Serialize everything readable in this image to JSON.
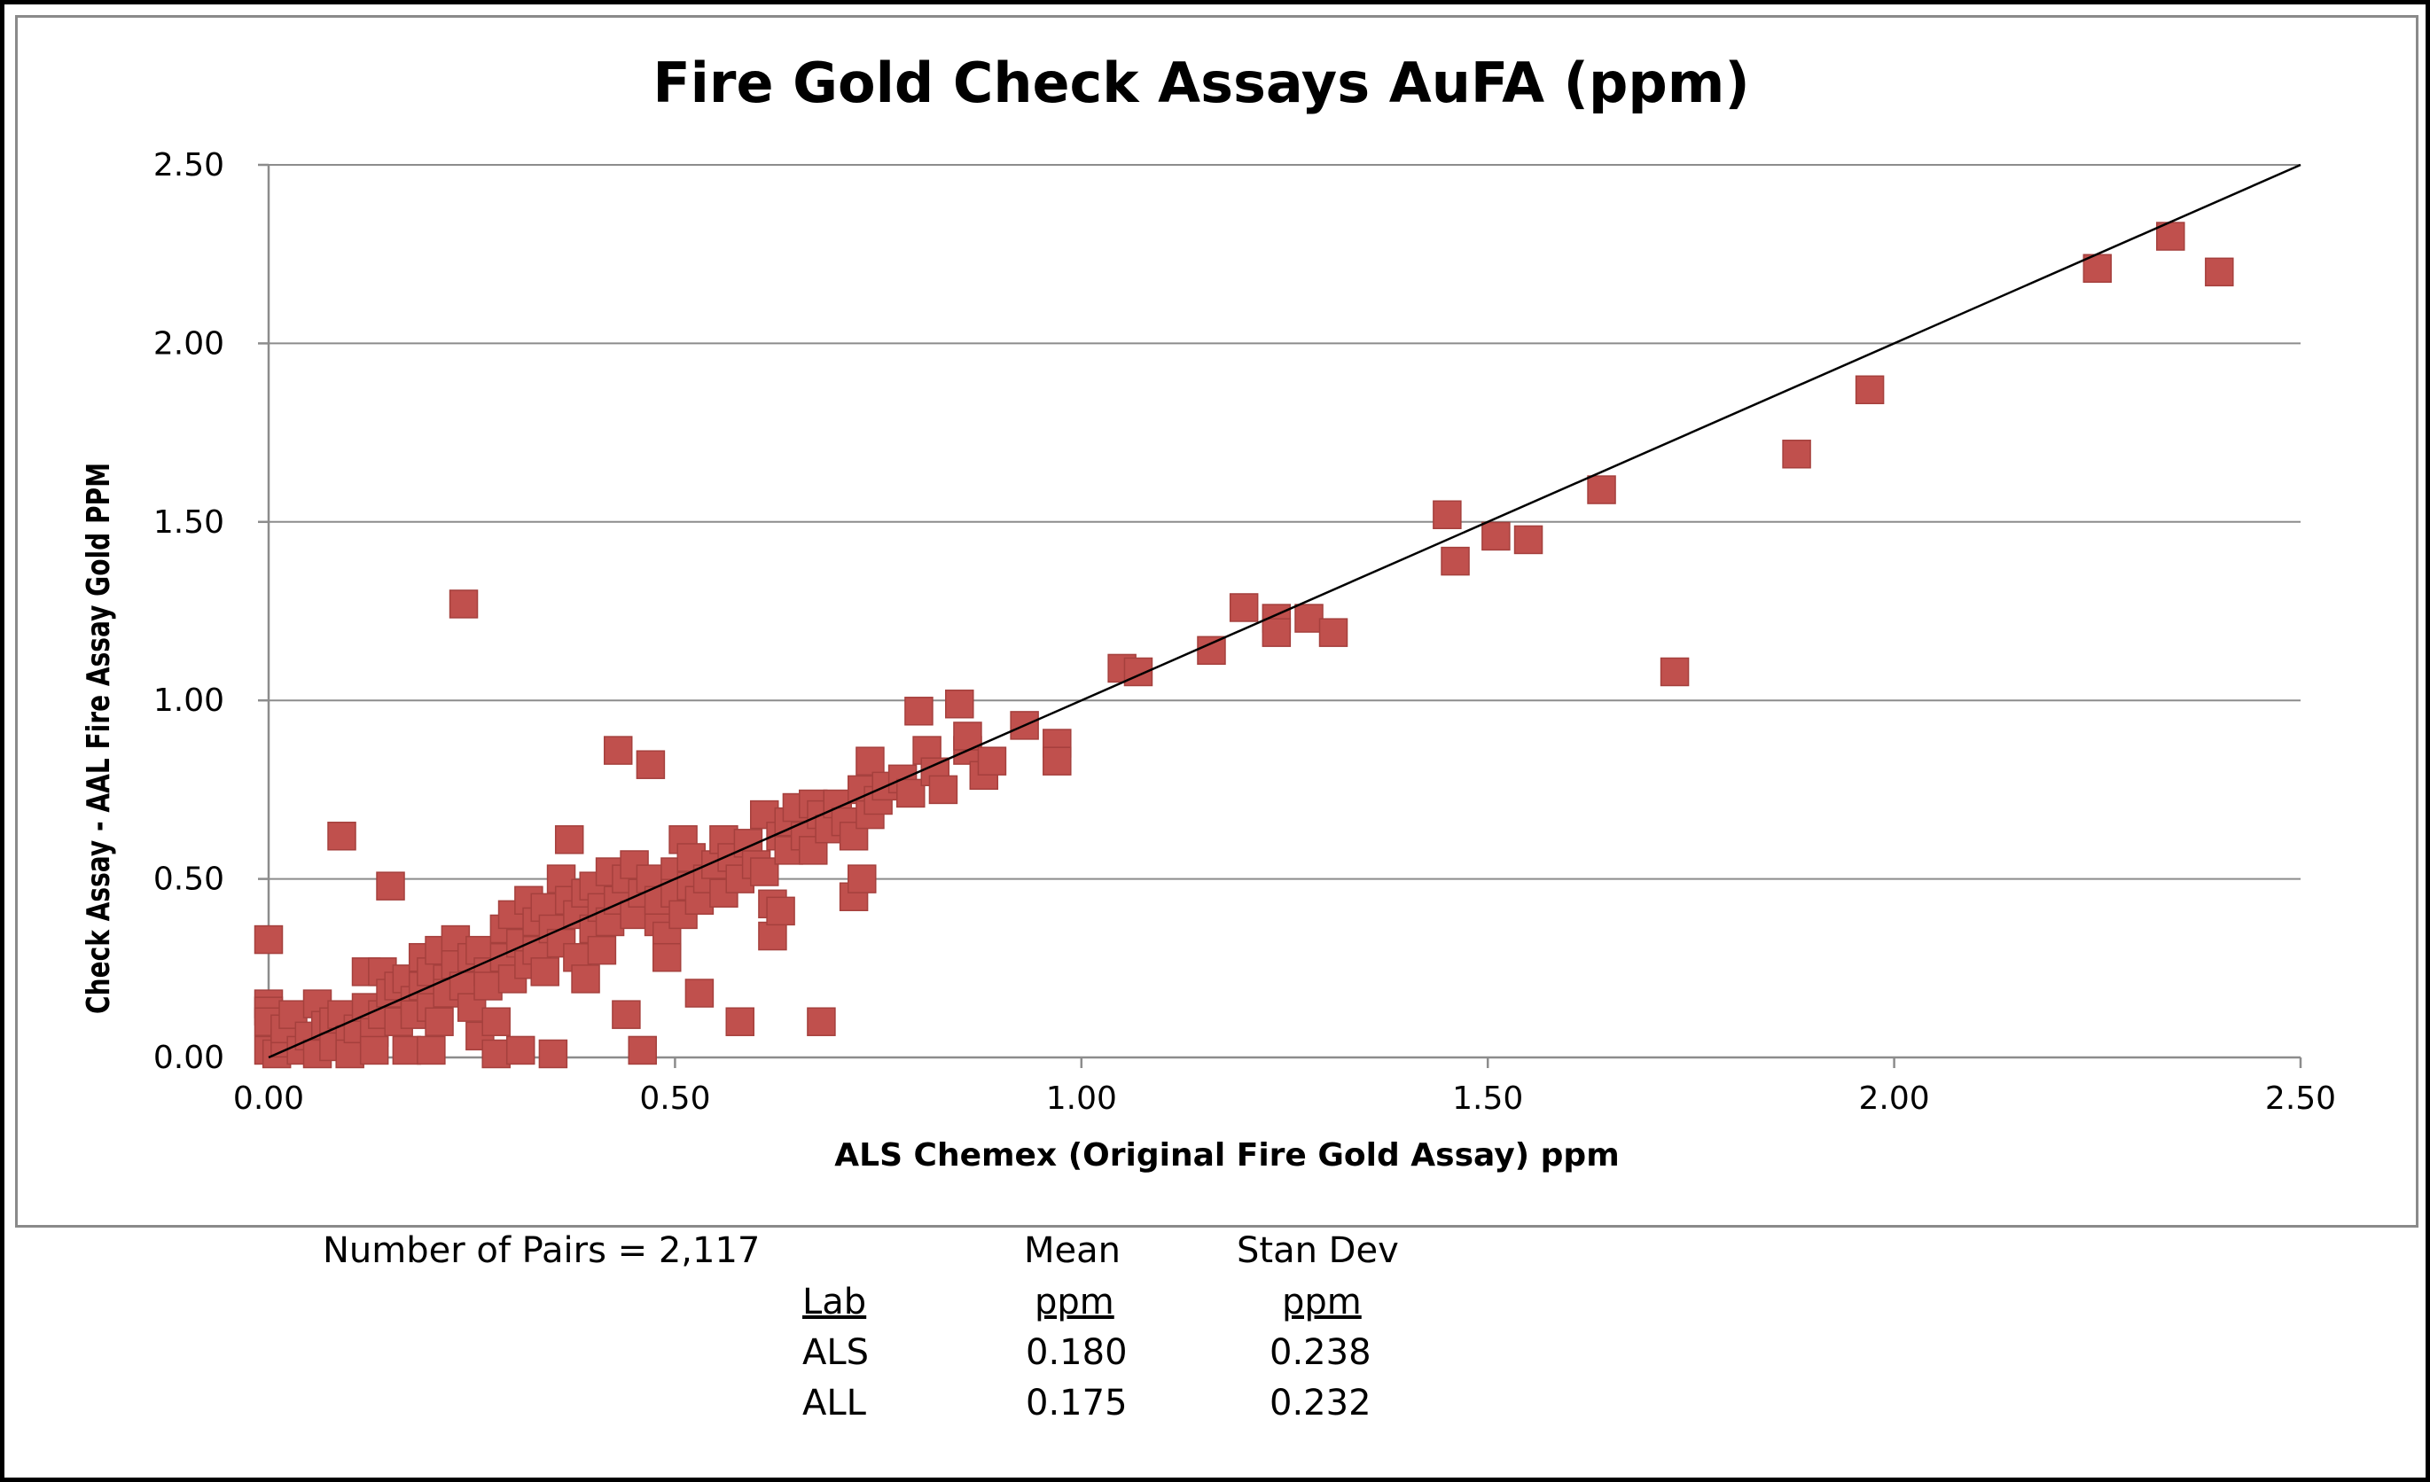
{
  "chart_data": {
    "type": "scatter",
    "title": "Fire Gold Check Assays AuFA (ppm)",
    "xlabel": "ALS Chemex (Original Fire Gold Assay) ppm",
    "ylabel": "Check Assay - AAL Fire Assay Gold PPM",
    "xlim": [
      0,
      2.5
    ],
    "ylim": [
      0,
      2.5
    ],
    "xticks": [
      "0.00",
      "0.50",
      "1.00",
      "1.50",
      "2.00",
      "2.50"
    ],
    "yticks": [
      "0.00",
      "0.50",
      "1.00",
      "1.50",
      "2.00",
      "2.50"
    ],
    "grid": "horizontal",
    "legend": "none",
    "marker_color": "#C0504D",
    "marker_shape": "square",
    "reference_line": {
      "label": "",
      "x": [
        0,
        2.5
      ],
      "y": [
        0,
        2.5
      ],
      "color": "#000000"
    },
    "points": [
      [
        0.0,
        0.33
      ],
      [
        0.0,
        0.15
      ],
      [
        0.0,
        0.13
      ],
      [
        0.0,
        0.1
      ],
      [
        0.0,
        0.02
      ],
      [
        0.01,
        0.01
      ],
      [
        0.02,
        0.04
      ],
      [
        0.02,
        0.08
      ],
      [
        0.03,
        0.12
      ],
      [
        0.04,
        0.02
      ],
      [
        0.05,
        0.06
      ],
      [
        0.06,
        0.15
      ],
      [
        0.06,
        0.01
      ],
      [
        0.07,
        0.09
      ],
      [
        0.08,
        0.1
      ],
      [
        0.08,
        0.03
      ],
      [
        0.09,
        0.62
      ],
      [
        0.09,
        0.12
      ],
      [
        0.1,
        0.05
      ],
      [
        0.1,
        0.01
      ],
      [
        0.11,
        0.08
      ],
      [
        0.12,
        0.14
      ],
      [
        0.12,
        0.24
      ],
      [
        0.13,
        0.07
      ],
      [
        0.13,
        0.02
      ],
      [
        0.14,
        0.12
      ],
      [
        0.14,
        0.24
      ],
      [
        0.15,
        0.48
      ],
      [
        0.15,
        0.18
      ],
      [
        0.16,
        0.1
      ],
      [
        0.16,
        0.2
      ],
      [
        0.17,
        0.22
      ],
      [
        0.17,
        0.02
      ],
      [
        0.18,
        0.16
      ],
      [
        0.18,
        0.12
      ],
      [
        0.19,
        0.28
      ],
      [
        0.19,
        0.2
      ],
      [
        0.2,
        0.14
      ],
      [
        0.2,
        0.24
      ],
      [
        0.2,
        0.02
      ],
      [
        0.21,
        0.3
      ],
      [
        0.21,
        0.1
      ],
      [
        0.22,
        0.22
      ],
      [
        0.22,
        0.18
      ],
      [
        0.23,
        0.33
      ],
      [
        0.23,
        0.26
      ],
      [
        0.24,
        1.27
      ],
      [
        0.24,
        0.2
      ],
      [
        0.25,
        0.28
      ],
      [
        0.25,
        0.14
      ],
      [
        0.26,
        0.3
      ],
      [
        0.26,
        0.06
      ],
      [
        0.27,
        0.24
      ],
      [
        0.27,
        0.2
      ],
      [
        0.28,
        0.1
      ],
      [
        0.28,
        0.01
      ],
      [
        0.29,
        0.36
      ],
      [
        0.29,
        0.28
      ],
      [
        0.3,
        0.4
      ],
      [
        0.3,
        0.22
      ],
      [
        0.31,
        0.32
      ],
      [
        0.31,
        0.02
      ],
      [
        0.32,
        0.44
      ],
      [
        0.32,
        0.26
      ],
      [
        0.33,
        0.38
      ],
      [
        0.33,
        0.3
      ],
      [
        0.34,
        0.42
      ],
      [
        0.34,
        0.24
      ],
      [
        0.35,
        0.36
      ],
      [
        0.35,
        0.01
      ],
      [
        0.36,
        0.5
      ],
      [
        0.36,
        0.32
      ],
      [
        0.37,
        0.61
      ],
      [
        0.37,
        0.44
      ],
      [
        0.38,
        0.4
      ],
      [
        0.38,
        0.28
      ],
      [
        0.39,
        0.46
      ],
      [
        0.39,
        0.22
      ],
      [
        0.4,
        0.48
      ],
      [
        0.4,
        0.36
      ],
      [
        0.41,
        0.42
      ],
      [
        0.41,
        0.3
      ],
      [
        0.42,
        0.52
      ],
      [
        0.42,
        0.38
      ],
      [
        0.43,
        0.86
      ],
      [
        0.43,
        0.44
      ],
      [
        0.44,
        0.5
      ],
      [
        0.44,
        0.12
      ],
      [
        0.45,
        0.54
      ],
      [
        0.45,
        0.4
      ],
      [
        0.46,
        0.46
      ],
      [
        0.46,
        0.02
      ],
      [
        0.47,
        0.82
      ],
      [
        0.47,
        0.5
      ],
      [
        0.48,
        0.38
      ],
      [
        0.48,
        0.44
      ],
      [
        0.49,
        0.34
      ],
      [
        0.49,
        0.28
      ],
      [
        0.5,
        0.52
      ],
      [
        0.5,
        0.46
      ],
      [
        0.51,
        0.61
      ],
      [
        0.51,
        0.4
      ],
      [
        0.52,
        0.48
      ],
      [
        0.52,
        0.56
      ],
      [
        0.53,
        0.18
      ],
      [
        0.53,
        0.44
      ],
      [
        0.54,
        0.5
      ],
      [
        0.55,
        0.54
      ],
      [
        0.56,
        0.61
      ],
      [
        0.56,
        0.46
      ],
      [
        0.57,
        0.56
      ],
      [
        0.58,
        0.1
      ],
      [
        0.58,
        0.5
      ],
      [
        0.59,
        0.6
      ],
      [
        0.6,
        0.54
      ],
      [
        0.61,
        0.68
      ],
      [
        0.61,
        0.52
      ],
      [
        0.62,
        0.34
      ],
      [
        0.62,
        0.43
      ],
      [
        0.63,
        0.41
      ],
      [
        0.63,
        0.62
      ],
      [
        0.64,
        0.66
      ],
      [
        0.64,
        0.58
      ],
      [
        0.65,
        0.7
      ],
      [
        0.66,
        0.62
      ],
      [
        0.67,
        0.71
      ],
      [
        0.67,
        0.58
      ],
      [
        0.68,
        0.1
      ],
      [
        0.68,
        0.68
      ],
      [
        0.69,
        0.64
      ],
      [
        0.7,
        0.71
      ],
      [
        0.71,
        0.66
      ],
      [
        0.72,
        0.45
      ],
      [
        0.72,
        0.62
      ],
      [
        0.73,
        0.5
      ],
      [
        0.73,
        0.75
      ],
      [
        0.74,
        0.83
      ],
      [
        0.74,
        0.68
      ],
      [
        0.75,
        0.72
      ],
      [
        0.76,
        0.76
      ],
      [
        0.78,
        0.78
      ],
      [
        0.79,
        0.74
      ],
      [
        0.8,
        0.97
      ],
      [
        0.81,
        0.86
      ],
      [
        0.82,
        0.8
      ],
      [
        0.83,
        0.75
      ],
      [
        0.85,
        0.99
      ],
      [
        0.86,
        0.86
      ],
      [
        0.86,
        0.9
      ],
      [
        0.88,
        0.79
      ],
      [
        0.89,
        0.83
      ],
      [
        0.93,
        0.93
      ],
      [
        0.97,
        0.88
      ],
      [
        0.97,
        0.83
      ],
      [
        1.05,
        1.09
      ],
      [
        1.07,
        1.08
      ],
      [
        1.16,
        1.14
      ],
      [
        1.2,
        1.26
      ],
      [
        1.24,
        1.23
      ],
      [
        1.24,
        1.19
      ],
      [
        1.28,
        1.23
      ],
      [
        1.31,
        1.19
      ],
      [
        1.45,
        1.52
      ],
      [
        1.46,
        1.39
      ],
      [
        1.51,
        1.46
      ],
      [
        1.55,
        1.45
      ],
      [
        1.64,
        1.59
      ],
      [
        1.73,
        1.08
      ],
      [
        1.88,
        1.69
      ],
      [
        1.97,
        1.87
      ],
      [
        2.25,
        2.21
      ],
      [
        2.34,
        2.3
      ],
      [
        2.4,
        2.2
      ]
    ]
  },
  "stats": {
    "pairs_label": "Number of Pairs = 2,117",
    "mean_header": "Mean",
    "stdev_header": "Stan Dev",
    "lab_header": "Lab",
    "mean_unit": "ppm",
    "stdev_unit": "ppm",
    "rows": [
      {
        "lab": "ALS",
        "mean": "0.180",
        "stdev": "0.238"
      },
      {
        "lab": "ALL",
        "mean": "0.175",
        "stdev": "0.232"
      }
    ]
  }
}
